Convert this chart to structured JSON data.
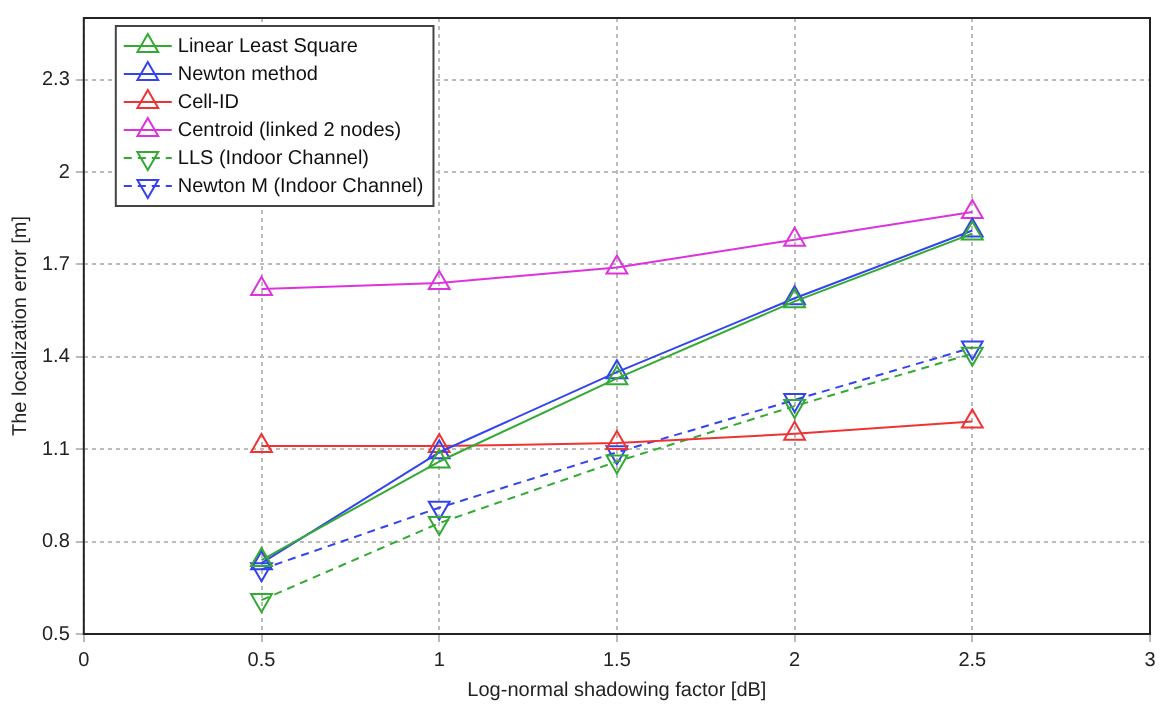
{
  "chart_data": {
    "type": "line",
    "xlabel": "Log-normal shadowing factor [dB]",
    "ylabel": "The localization error [m]",
    "x": [
      0.5,
      1,
      1.5,
      2,
      2.5
    ],
    "series": [
      {
        "name": "Linear Least Square",
        "color": "#33aa33",
        "marker": "triangle",
        "line_style": "solid",
        "values": [
          0.74,
          1.06,
          1.33,
          1.58,
          1.8
        ]
      },
      {
        "name": "Newton method",
        "color": "#3344ee",
        "marker": "triangle",
        "line_style": "solid",
        "values": [
          0.73,
          1.09,
          1.35,
          1.59,
          1.81
        ]
      },
      {
        "name": "Cell-ID",
        "color": "#ee3333",
        "marker": "triangle",
        "line_style": "solid",
        "values": [
          1.11,
          1.11,
          1.12,
          1.15,
          1.19
        ]
      },
      {
        "name": "Centroid (linked 2 nodes)",
        "color": "#dd33dd",
        "marker": "triangle",
        "line_style": "solid",
        "values": [
          1.62,
          1.64,
          1.69,
          1.78,
          1.87
        ]
      },
      {
        "name": "LLS (Indoor Channel)",
        "color": "#33aa33",
        "marker": "triangle-down",
        "line_style": "dashed",
        "values": [
          0.61,
          0.86,
          1.06,
          1.24,
          1.41
        ]
      },
      {
        "name": "Newton M (Indoor Channel)",
        "color": "#3344ee",
        "marker": "triangle-down",
        "line_style": "dashed",
        "values": [
          0.71,
          0.91,
          1.09,
          1.26,
          1.43
        ]
      }
    ],
    "xlim": [
      0,
      3
    ],
    "xticks": [
      0,
      0.5,
      1,
      1.5,
      2,
      2.5,
      3
    ],
    "ylim": [
      0.5,
      2.5
    ],
    "yticks": [
      0.5,
      0.8,
      1.1,
      1.4,
      1.7,
      2,
      2.3
    ],
    "grid": true,
    "legend": "top left"
  }
}
